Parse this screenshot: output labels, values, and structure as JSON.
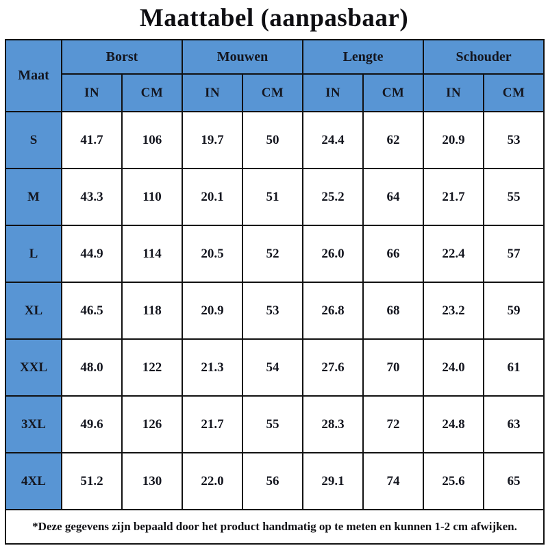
{
  "title": "Maattabel (aanpasbaar)",
  "table": {
    "corner_label": "Maat",
    "groups": [
      {
        "label": "Borst"
      },
      {
        "label": "Mouwen"
      },
      {
        "label": "Lengte"
      },
      {
        "label": "Schouder"
      }
    ],
    "unit_labels": [
      "IN",
      "CM",
      "IN",
      "CM",
      "IN",
      "CM",
      "IN",
      "CM"
    ],
    "rows": [
      {
        "size": "S",
        "values": [
          "41.7",
          "106",
          "19.7",
          "50",
          "24.4",
          "62",
          "20.9",
          "53"
        ]
      },
      {
        "size": "M",
        "values": [
          "43.3",
          "110",
          "20.1",
          "51",
          "25.2",
          "64",
          "21.7",
          "55"
        ]
      },
      {
        "size": "L",
        "values": [
          "44.9",
          "114",
          "20.5",
          "52",
          "26.0",
          "66",
          "22.4",
          "57"
        ]
      },
      {
        "size": "XL",
        "values": [
          "46.5",
          "118",
          "20.9",
          "53",
          "26.8",
          "68",
          "23.2",
          "59"
        ]
      },
      {
        "size": "XXL",
        "values": [
          "48.0",
          "122",
          "21.3",
          "54",
          "27.6",
          "70",
          "24.0",
          "61"
        ]
      },
      {
        "size": "3XL",
        "values": [
          "49.6",
          "126",
          "21.7",
          "55",
          "28.3",
          "72",
          "24.8",
          "63"
        ]
      },
      {
        "size": "4XL",
        "values": [
          "51.2",
          "130",
          "22.0",
          "56",
          "29.1",
          "74",
          "25.6",
          "65"
        ]
      }
    ]
  },
  "footnote": "*Deze gegevens zijn bepaald door het product handmatig op te meten en kunnen 1-2 cm afwijken.",
  "colors": {
    "header_blue": "#5895d4",
    "grid_black": "#111111",
    "text_dark": "#14161f",
    "cell_white": "#ffffff"
  },
  "chart_data": {
    "type": "table",
    "title": "Maattabel (aanpasbaar)",
    "columns": [
      "Maat",
      "Borst IN",
      "Borst CM",
      "Mouwen IN",
      "Mouwen CM",
      "Lengte IN",
      "Lengte CM",
      "Schouder IN",
      "Schouder CM"
    ],
    "rows": [
      [
        "S",
        41.7,
        106,
        19.7,
        50,
        24.4,
        62,
        20.9,
        53
      ],
      [
        "M",
        43.3,
        110,
        20.1,
        51,
        25.2,
        64,
        21.7,
        55
      ],
      [
        "L",
        44.9,
        114,
        20.5,
        52,
        26.0,
        66,
        22.4,
        57
      ],
      [
        "XL",
        46.5,
        118,
        20.9,
        53,
        26.8,
        68,
        23.2,
        59
      ],
      [
        "XXL",
        48.0,
        122,
        21.3,
        54,
        27.6,
        70,
        24.0,
        61
      ],
      [
        "3XL",
        49.6,
        126,
        21.7,
        55,
        28.3,
        72,
        24.8,
        63
      ],
      [
        "4XL",
        51.2,
        130,
        22.0,
        56,
        29.1,
        74,
        25.6,
        65
      ]
    ],
    "footnote": "*Deze gegevens zijn bepaald door het product handmatig op te meten en kunnen 1-2 cm afwijken."
  }
}
